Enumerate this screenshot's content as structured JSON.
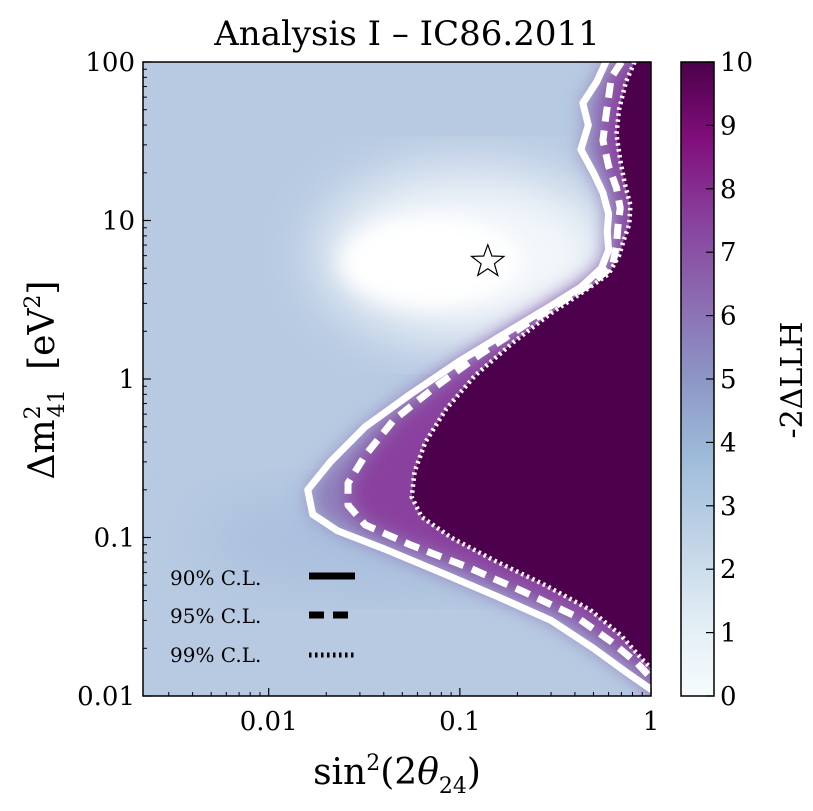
{
  "chart_data": {
    "type": "heatmap",
    "title": "Analysis I – IC86.2011",
    "xlabel": "sin²(2θ₂₄)",
    "ylabel": "Δm²₄₁ [eV²]",
    "x_scale": "log",
    "y_scale": "log",
    "xlim": [
      0.0022,
      1
    ],
    "ylim": [
      0.01,
      100
    ],
    "x_ticks": [
      {
        "value": 0.01,
        "label": "0.01"
      },
      {
        "value": 0.1,
        "label": "0.1"
      },
      {
        "value": 1,
        "label": "1"
      }
    ],
    "y_ticks": [
      {
        "value": 0.01,
        "label": "0.01"
      },
      {
        "value": 0.1,
        "label": "0.1"
      },
      {
        "value": 1,
        "label": "1"
      },
      {
        "value": 10,
        "label": "10"
      },
      {
        "value": 100,
        "label": "100"
      }
    ],
    "colorbar": {
      "label": "-2ΔLLH",
      "range": [
        0,
        10
      ],
      "ticks": [
        "0",
        "1",
        "2",
        "3",
        "4",
        "5",
        "6",
        "7",
        "8",
        "9",
        "10"
      ],
      "colors": [
        "#f7fcfd",
        "#e0ecf4",
        "#bfd3e6",
        "#9ebcda",
        "#8c96c6",
        "#8c6bb1",
        "#88419d",
        "#810f7c",
        "#4d004b"
      ]
    },
    "best_fit": {
      "label": "best fit",
      "x": 0.14,
      "y": 5.5
    },
    "legend": {
      "position": "lower-left",
      "entries": [
        {
          "label": "90% C.L.",
          "style": "solid"
        },
        {
          "label": "95% C.L.",
          "style": "dashed"
        },
        {
          "label": "99% C.L.",
          "style": "dotted"
        }
      ]
    },
    "contours": [
      {
        "name": "90% C.L.",
        "style": "solid",
        "points": [
          [
            0.58,
            100
          ],
          [
            0.52,
            75
          ],
          [
            0.44,
            55
          ],
          [
            0.47,
            40
          ],
          [
            0.43,
            28
          ],
          [
            0.5,
            20
          ],
          [
            0.56,
            15
          ],
          [
            0.6,
            11
          ],
          [
            0.59,
            8.5
          ],
          [
            0.6,
            6.5
          ],
          [
            0.55,
            5.0
          ],
          [
            0.43,
            3.8
          ],
          [
            0.3,
            2.9
          ],
          [
            0.18,
            2.0
          ],
          [
            0.1,
            1.3
          ],
          [
            0.055,
            0.8
          ],
          [
            0.032,
            0.5
          ],
          [
            0.021,
            0.3
          ],
          [
            0.016,
            0.2
          ],
          [
            0.017,
            0.14
          ],
          [
            0.023,
            0.11
          ],
          [
            0.04,
            0.085
          ],
          [
            0.08,
            0.06
          ],
          [
            0.16,
            0.042
          ],
          [
            0.3,
            0.03
          ],
          [
            0.5,
            0.02
          ],
          [
            0.75,
            0.014
          ],
          [
            1.0,
            0.011
          ]
        ]
      },
      {
        "name": "95% C.L.",
        "style": "dashed",
        "points": [
          [
            0.7,
            100
          ],
          [
            0.62,
            80
          ],
          [
            0.6,
            60
          ],
          [
            0.58,
            45
          ],
          [
            0.56,
            32
          ],
          [
            0.6,
            22
          ],
          [
            0.66,
            16
          ],
          [
            0.69,
            12
          ],
          [
            0.67,
            9
          ],
          [
            0.66,
            7
          ],
          [
            0.63,
            5.2
          ],
          [
            0.5,
            4.1
          ],
          [
            0.36,
            3.2
          ],
          [
            0.22,
            2.2
          ],
          [
            0.13,
            1.45
          ],
          [
            0.075,
            0.9
          ],
          [
            0.045,
            0.55
          ],
          [
            0.032,
            0.33
          ],
          [
            0.026,
            0.22
          ],
          [
            0.026,
            0.16
          ],
          [
            0.032,
            0.12
          ],
          [
            0.055,
            0.09
          ],
          [
            0.11,
            0.065
          ],
          [
            0.22,
            0.045
          ],
          [
            0.4,
            0.032
          ],
          [
            0.62,
            0.022
          ],
          [
            0.85,
            0.016
          ],
          [
            1.0,
            0.013
          ]
        ]
      },
      {
        "name": "99% C.L.",
        "style": "dotted",
        "points": [
          [
            0.82,
            100
          ],
          [
            0.74,
            75
          ],
          [
            0.68,
            50
          ],
          [
            0.66,
            35
          ],
          [
            0.69,
            24
          ],
          [
            0.73,
            17
          ],
          [
            0.78,
            12.5
          ],
          [
            0.77,
            9.5
          ],
          [
            0.72,
            7.5
          ],
          [
            0.68,
            6
          ],
          [
            0.6,
            4.6
          ],
          [
            0.45,
            3.6
          ],
          [
            0.3,
            2.6
          ],
          [
            0.19,
            1.7
          ],
          [
            0.12,
            1.05
          ],
          [
            0.085,
            0.65
          ],
          [
            0.066,
            0.4
          ],
          [
            0.058,
            0.26
          ],
          [
            0.056,
            0.18
          ],
          [
            0.063,
            0.135
          ],
          [
            0.09,
            0.1
          ],
          [
            0.15,
            0.072
          ],
          [
            0.28,
            0.05
          ],
          [
            0.48,
            0.035
          ],
          [
            0.7,
            0.024
          ],
          [
            0.9,
            0.017
          ],
          [
            1.0,
            0.015
          ]
        ]
      }
    ]
  }
}
